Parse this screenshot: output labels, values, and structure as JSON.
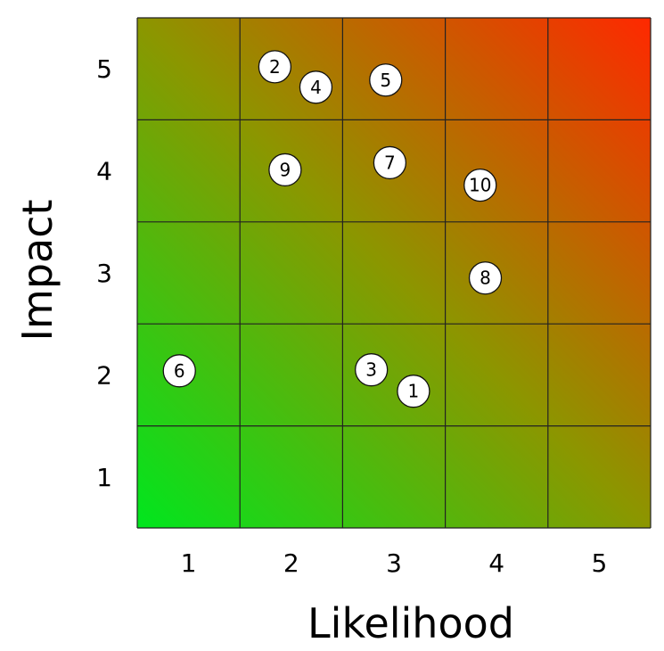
{
  "chart_data": {
    "type": "scatter",
    "subtype": "risk-matrix",
    "xlabel": "Likelihood",
    "ylabel": "Impact",
    "x_ticks": [
      "1",
      "2",
      "3",
      "4",
      "5"
    ],
    "y_ticks": [
      "1",
      "2",
      "3",
      "4",
      "5"
    ],
    "xlim": [
      0.5,
      5.5
    ],
    "ylim": [
      0.5,
      5.5
    ],
    "grid": true,
    "legend": "none",
    "background_gradient": {
      "low_color": "#00e61e",
      "mid_color": "#8c9600",
      "high_color": "#ff2800"
    },
    "points": [
      {
        "label": "1",
        "x": 3.19,
        "y": 1.84
      },
      {
        "label": "2",
        "x": 1.84,
        "y": 5.02
      },
      {
        "label": "3",
        "x": 2.78,
        "y": 2.05
      },
      {
        "label": "4",
        "x": 2.24,
        "y": 4.82
      },
      {
        "label": "5",
        "x": 2.92,
        "y": 4.89
      },
      {
        "label": "6",
        "x": 0.91,
        "y": 2.04
      },
      {
        "label": "7",
        "x": 2.96,
        "y": 4.08
      },
      {
        "label": "8",
        "x": 3.89,
        "y": 2.95
      },
      {
        "label": "9",
        "x": 1.94,
        "y": 4.01
      },
      {
        "label": "10",
        "x": 3.84,
        "y": 3.86
      }
    ]
  }
}
